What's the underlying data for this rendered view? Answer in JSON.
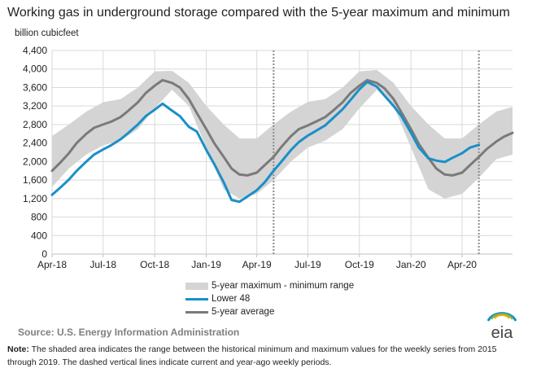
{
  "title": "Working gas in underground storage compared with the 5-year maximum and minimum",
  "ylabel": "billion cubicfeet",
  "legend": {
    "range": "5-year maximum - minimum range",
    "lower48": "Lower 48",
    "avg": "5-year average"
  },
  "source": "Source:  U.S. Energy Information Administration",
  "note_label": "Note:",
  "note_text": " The shaded area indicates the range between the historical minimum and maximum values for the weekly series from 2015 through 2019. The dashed vertical lines indicate current and year-ago weekly periods.",
  "logo_text": "eia",
  "colors": {
    "lower48": "#1a8fc9",
    "avg": "#7a7a7a",
    "range": "#d4d4d4"
  },
  "chart_data": {
    "type": "area",
    "title": "Working gas in underground storage compared with the 5-year maximum and minimum",
    "ylabel": "billion cubicfeet",
    "xlabel": "",
    "ylim": [
      0,
      4400
    ],
    "yticks": [
      0,
      400,
      800,
      1200,
      1600,
      2000,
      2400,
      2800,
      3200,
      3600,
      4000,
      4400
    ],
    "ytick_labels": [
      "0",
      "400",
      "800",
      "1,200",
      "1,600",
      "2,000",
      "2,400",
      "2,800",
      "3,200",
      "3,600",
      "4,000",
      "4,400"
    ],
    "xlim": [
      "2018-04-01",
      "2020-06-30"
    ],
    "xticks": [
      "2018-04-01",
      "2018-07-01",
      "2018-10-01",
      "2019-01-01",
      "2019-04-01",
      "2019-07-01",
      "2019-10-01",
      "2020-01-01",
      "2020-04-01"
    ],
    "xtick_labels": [
      "Apr-18",
      "Jul-18",
      "Oct-18",
      "Jan-19",
      "Apr-19",
      "Jul-19",
      "Oct-19",
      "Jan-20",
      "Apr-20"
    ],
    "grid": true,
    "legend_position": "bottom",
    "vlines_dashed": [
      "2019-05-01",
      "2020-05-01"
    ],
    "range": {
      "name": "5-year maximum - minimum range",
      "x": [
        "2018-04-01",
        "2018-05-01",
        "2018-06-01",
        "2018-07-01",
        "2018-08-01",
        "2018-09-01",
        "2018-10-01",
        "2018-11-01",
        "2018-12-01",
        "2019-01-01",
        "2019-02-01",
        "2019-03-01",
        "2019-04-01",
        "2019-05-01",
        "2019-06-01",
        "2019-07-01",
        "2019-08-01",
        "2019-09-01",
        "2019-10-01",
        "2019-11-01",
        "2019-12-01",
        "2020-01-01",
        "2020-02-01",
        "2020-03-01",
        "2020-04-01",
        "2020-05-01",
        "2020-06-01",
        "2020-06-30"
      ],
      "max": [
        2550,
        2800,
        3080,
        3280,
        3350,
        3600,
        3950,
        3960,
        3700,
        3200,
        2800,
        2500,
        2500,
        2800,
        3080,
        3290,
        3350,
        3600,
        3950,
        3980,
        3700,
        3200,
        2800,
        2500,
        2500,
        2800,
        3080,
        3180
      ],
      "min": [
        1450,
        1850,
        2150,
        2350,
        2450,
        2700,
        3150,
        3550,
        3200,
        2300,
        1400,
        1200,
        1300,
        1600,
        2000,
        2300,
        2450,
        2700,
        3150,
        3550,
        3200,
        2300,
        1400,
        1200,
        1300,
        1650,
        2050,
        2150
      ]
    },
    "series": [
      {
        "name": "Lower 48",
        "x": [
          "2018-04-01",
          "2018-04-15",
          "2018-05-01",
          "2018-05-15",
          "2018-06-01",
          "2018-06-15",
          "2018-07-01",
          "2018-07-15",
          "2018-08-01",
          "2018-08-15",
          "2018-09-01",
          "2018-09-15",
          "2018-10-01",
          "2018-10-15",
          "2018-11-01",
          "2018-11-15",
          "2018-12-01",
          "2018-12-15",
          "2019-01-01",
          "2019-01-15",
          "2019-02-01",
          "2019-02-15",
          "2019-03-01",
          "2019-03-15",
          "2019-04-01",
          "2019-04-15",
          "2019-05-01",
          "2019-05-15",
          "2019-06-01",
          "2019-06-15",
          "2019-07-01",
          "2019-07-15",
          "2019-08-01",
          "2019-08-15",
          "2019-09-01",
          "2019-09-15",
          "2019-10-01",
          "2019-10-15",
          "2019-11-01",
          "2019-11-15",
          "2019-12-01",
          "2019-12-15",
          "2020-01-01",
          "2020-01-15",
          "2020-02-01",
          "2020-02-15",
          "2020-03-01",
          "2020-03-15",
          "2020-04-01",
          "2020-04-15",
          "2020-05-01"
        ],
        "values": [
          1280,
          1430,
          1610,
          1800,
          2000,
          2150,
          2260,
          2350,
          2480,
          2620,
          2800,
          2980,
          3120,
          3250,
          3100,
          2980,
          2750,
          2650,
          2250,
          1950,
          1550,
          1170,
          1130,
          1240,
          1380,
          1550,
          1800,
          2000,
          2250,
          2420,
          2560,
          2660,
          2780,
          2940,
          3130,
          3330,
          3560,
          3720,
          3620,
          3420,
          3200,
          2980,
          2620,
          2300,
          2070,
          2020,
          1990,
          2080,
          2180,
          2300,
          2360
        ]
      },
      {
        "name": "5-year average",
        "x": [
          "2018-04-01",
          "2018-04-15",
          "2018-05-01",
          "2018-05-15",
          "2018-06-01",
          "2018-06-15",
          "2018-07-01",
          "2018-07-15",
          "2018-08-01",
          "2018-08-15",
          "2018-09-01",
          "2018-09-15",
          "2018-10-01",
          "2018-10-15",
          "2018-11-01",
          "2018-11-15",
          "2018-12-01",
          "2018-12-15",
          "2019-01-01",
          "2019-01-15",
          "2019-02-01",
          "2019-02-15",
          "2019-03-01",
          "2019-03-15",
          "2019-04-01",
          "2019-04-15",
          "2019-05-01",
          "2019-05-15",
          "2019-06-01",
          "2019-06-15",
          "2019-07-01",
          "2019-07-15",
          "2019-08-01",
          "2019-08-15",
          "2019-09-01",
          "2019-09-15",
          "2019-10-01",
          "2019-10-15",
          "2019-11-01",
          "2019-11-15",
          "2019-12-01",
          "2019-12-15",
          "2020-01-01",
          "2020-01-15",
          "2020-02-01",
          "2020-02-15",
          "2020-03-01",
          "2020-03-15",
          "2020-04-01",
          "2020-04-15",
          "2020-05-01",
          "2020-05-15",
          "2020-06-01",
          "2020-06-15",
          "2020-06-30"
        ],
        "values": [
          1800,
          1970,
          2180,
          2400,
          2600,
          2730,
          2800,
          2860,
          2960,
          3100,
          3280,
          3480,
          3640,
          3760,
          3700,
          3600,
          3350,
          3050,
          2700,
          2400,
          2100,
          1850,
          1720,
          1700,
          1760,
          1920,
          2100,
          2320,
          2550,
          2700,
          2780,
          2860,
          2960,
          3100,
          3280,
          3480,
          3640,
          3760,
          3700,
          3580,
          3350,
          3060,
          2700,
          2380,
          2080,
          1850,
          1720,
          1700,
          1760,
          1920,
          2100,
          2270,
          2430,
          2540,
          2620
        ]
      }
    ]
  }
}
